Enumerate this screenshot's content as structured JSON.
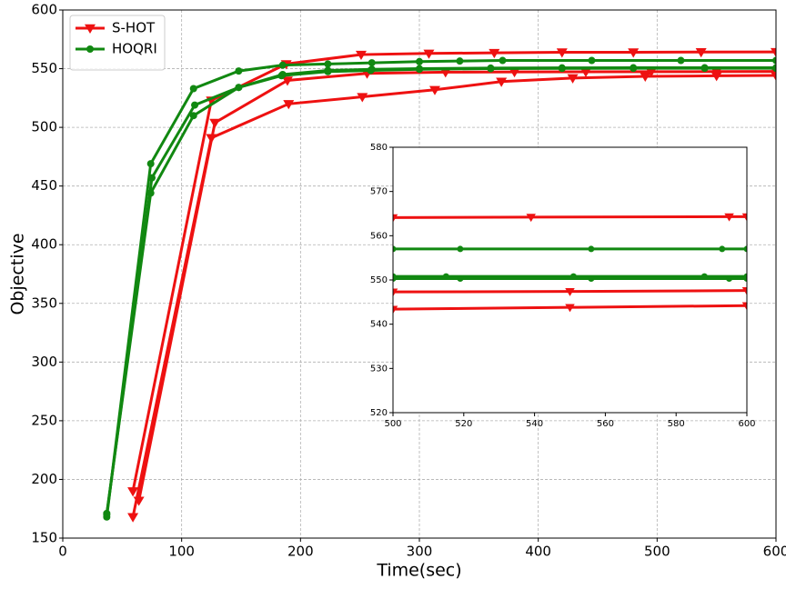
{
  "chart_data": [
    {
      "type": "line",
      "xlabel": "Time(sec)",
      "ylabel": "Objective",
      "xlim": [
        0,
        600
      ],
      "ylim": [
        150,
        600
      ],
      "xticks": [
        0,
        100,
        200,
        300,
        400,
        500,
        600
      ],
      "yticks": [
        150,
        200,
        250,
        300,
        350,
        400,
        450,
        500,
        550,
        600
      ],
      "grid": true,
      "legend": "upper left",
      "series": [
        {
          "name": "S-HOT",
          "color": "#ee1111",
          "marker": "v",
          "x": [
            59,
            125,
            188,
            251,
            308,
            363,
            420,
            480,
            537,
            600
          ],
          "values": [
            190,
            523,
            554,
            562,
            563,
            563.5,
            564,
            564,
            564.2,
            564.3
          ]
        },
        {
          "name": "S-HOT",
          "color": "#ee1111",
          "marker": "v",
          "x": [
            59,
            125,
            190,
            252,
            313,
            369,
            429,
            490,
            550,
            600
          ],
          "values": [
            168,
            491,
            520,
            526,
            532,
            539,
            542,
            543.5,
            543.9,
            544.2
          ]
        },
        {
          "name": "S-HOT",
          "color": "#ee1111",
          "marker": "v",
          "x": [
            64,
            128,
            189,
            256,
            322,
            380,
            440,
            495,
            550,
            600
          ],
          "values": [
            182,
            504,
            540,
            546,
            547,
            547.2,
            547.3,
            547.4,
            547.5,
            547.6
          ]
        },
        {
          "name": "HOQRI",
          "color": "#118811",
          "marker": "o",
          "x": [
            37,
            74,
            110,
            148,
            185,
            223,
            260,
            300,
            334,
            370,
            445,
            520,
            600
          ],
          "values": [
            168,
            469,
            533,
            548,
            553,
            554,
            555,
            556,
            556.5,
            557,
            557,
            557,
            557
          ]
        },
        {
          "name": "HOQRI",
          "color": "#118811",
          "marker": "o",
          "x": [
            37,
            74,
            110,
            148,
            185,
            223,
            260,
            300,
            360,
            420,
            480,
            540,
            600
          ],
          "values": [
            171,
            444,
            510,
            534,
            545,
            548.5,
            549.5,
            550,
            550.5,
            550.7,
            550.8,
            550.8,
            550.8
          ]
        },
        {
          "name": "HOQRI",
          "color": "#118811",
          "marker": "o",
          "x": [
            37,
            75,
            111,
            148,
            184,
            223,
            259,
            300,
            360,
            420,
            480,
            540,
            600
          ],
          "values": [
            170,
            457,
            519,
            534,
            544,
            547.5,
            548.5,
            549.5,
            550,
            550.2,
            550.3,
            550.3,
            550.3
          ]
        }
      ]
    },
    {
      "type": "line",
      "xlim": [
        500,
        600
      ],
      "ylim": [
        520,
        580
      ],
      "xticks": [
        500,
        520,
        540,
        560,
        580,
        600
      ],
      "yticks": [
        520,
        530,
        540,
        550,
        560,
        570,
        580
      ],
      "grid": false,
      "series": [
        {
          "color": "#ee1111",
          "marker": "v",
          "x": [
            500,
            539,
            595,
            600
          ],
          "values": [
            564.1,
            564.2,
            564.3,
            564.3
          ]
        },
        {
          "color": "#ee1111",
          "marker": "v",
          "x": [
            500,
            550,
            600
          ],
          "values": [
            543.4,
            543.8,
            544.2
          ]
        },
        {
          "color": "#ee1111",
          "marker": "v",
          "x": [
            500,
            550,
            600
          ],
          "values": [
            547.3,
            547.4,
            547.6
          ]
        },
        {
          "color": "#118811",
          "marker": "o",
          "x": [
            500,
            519,
            556,
            593,
            600
          ],
          "values": [
            557,
            557,
            557,
            557,
            557
          ]
        },
        {
          "color": "#118811",
          "marker": "o",
          "x": [
            500,
            515,
            551,
            588,
            600
          ],
          "values": [
            550.8,
            550.8,
            550.8,
            550.8,
            550.8
          ]
        },
        {
          "color": "#118811",
          "marker": "o",
          "x": [
            500,
            519,
            556,
            595,
            600
          ],
          "values": [
            550.3,
            550.3,
            550.3,
            550.3,
            550.3
          ]
        }
      ]
    }
  ]
}
